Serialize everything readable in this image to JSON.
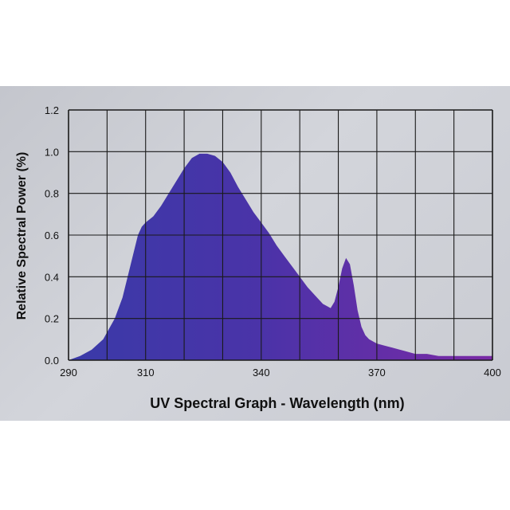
{
  "chart_data": {
    "type": "area",
    "xlabel": "UV Spectral Graph - Wavelength (nm)",
    "ylabel": "Relative Spectral Power (%)",
    "xlim": [
      290,
      400
    ],
    "ylim": [
      0,
      1.2
    ],
    "x_ticks": [
      "290",
      "310",
      "340",
      "370",
      "400"
    ],
    "y_ticks": [
      "0.0",
      "0.2",
      "0.4",
      "0.6",
      "0.8",
      "1.0",
      "1.2"
    ],
    "grid": true,
    "colors": {
      "start": "#3a3aa8",
      "end": "#7a2aa6",
      "grid": "#1a1a1a"
    },
    "series": [
      {
        "x": [
          290,
          293,
          296,
          299,
          302,
          304,
          306,
          308,
          309,
          310,
          312,
          314,
          316,
          318,
          320,
          322,
          324,
          326,
          328,
          330,
          332,
          334,
          336,
          338,
          340,
          342,
          344,
          346,
          348,
          350,
          352,
          354,
          356,
          358,
          359,
          360,
          361,
          362,
          363,
          364,
          365,
          366,
          367,
          368,
          370,
          372,
          374,
          376,
          378,
          380,
          383,
          386,
          390,
          395,
          400
        ],
        "y": [
          0.0,
          0.02,
          0.05,
          0.1,
          0.2,
          0.3,
          0.45,
          0.6,
          0.64,
          0.66,
          0.69,
          0.74,
          0.8,
          0.86,
          0.92,
          0.97,
          0.99,
          0.99,
          0.98,
          0.95,
          0.9,
          0.83,
          0.77,
          0.71,
          0.66,
          0.61,
          0.55,
          0.5,
          0.45,
          0.4,
          0.35,
          0.31,
          0.27,
          0.25,
          0.28,
          0.35,
          0.44,
          0.49,
          0.46,
          0.36,
          0.24,
          0.16,
          0.12,
          0.1,
          0.08,
          0.07,
          0.06,
          0.05,
          0.04,
          0.03,
          0.03,
          0.02,
          0.02,
          0.02,
          0.02
        ]
      }
    ]
  }
}
